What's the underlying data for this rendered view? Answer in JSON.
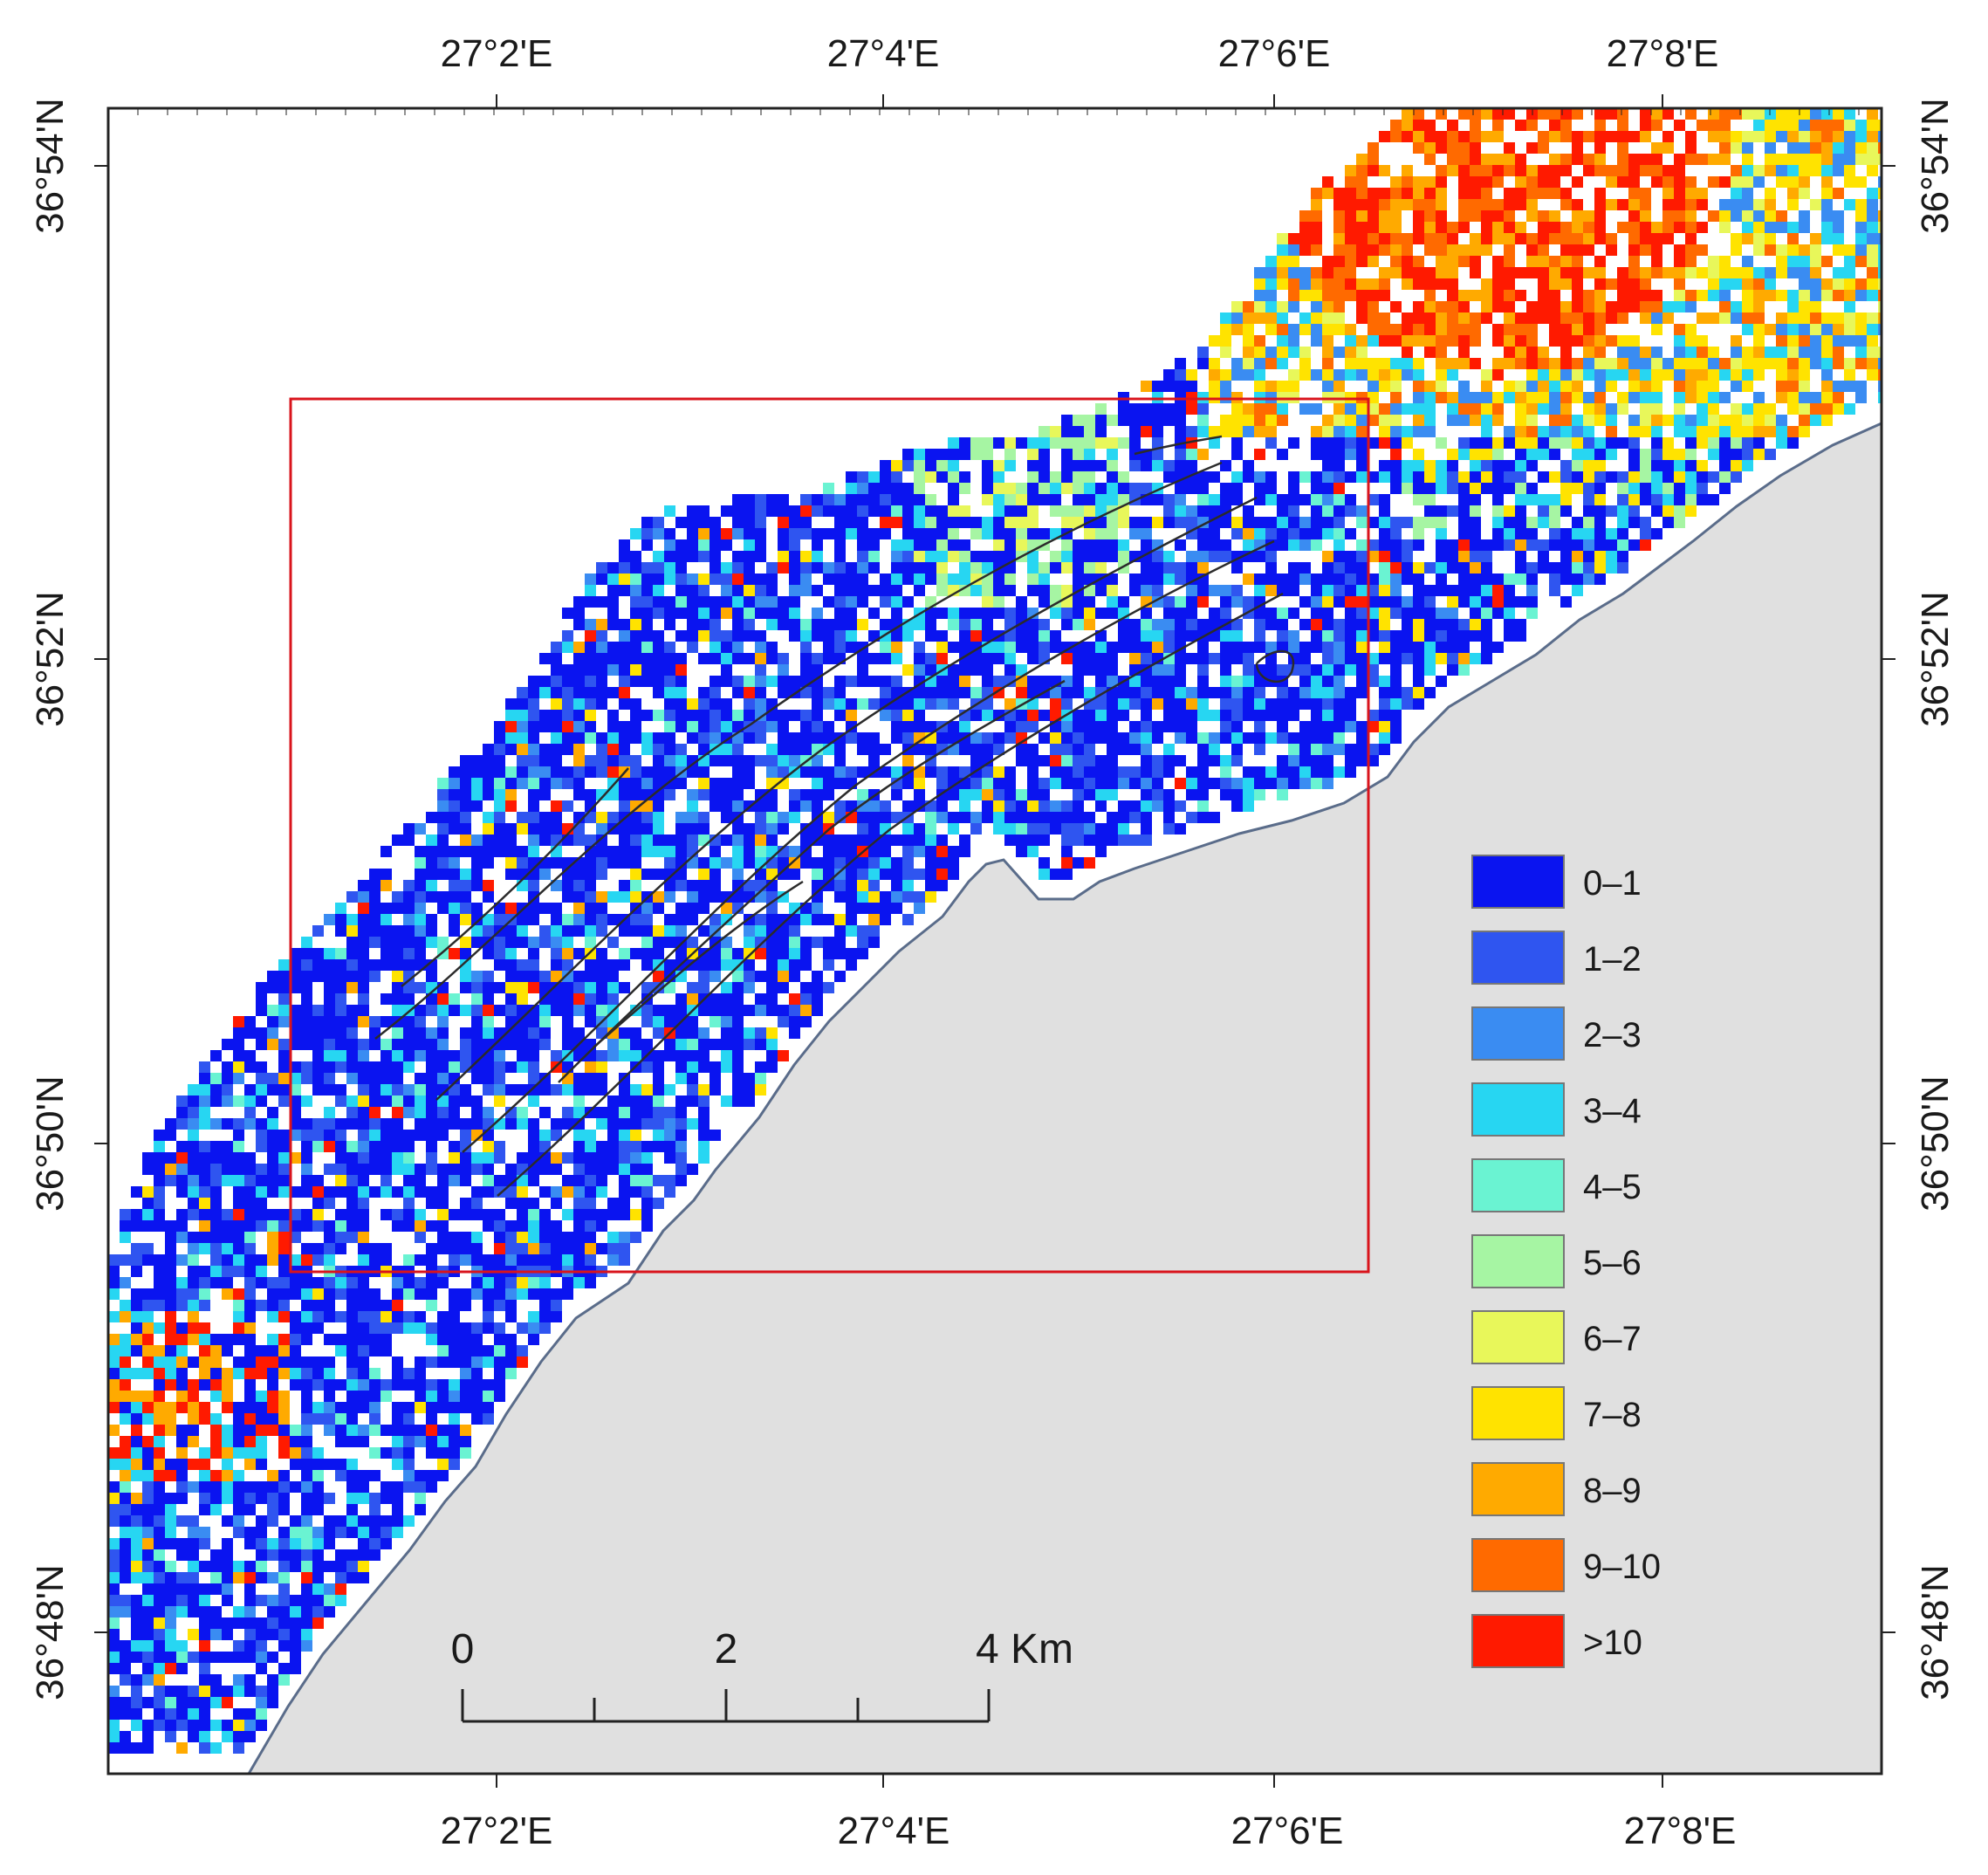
{
  "axes": {
    "top_ticks": [
      "27°2'E",
      "27°4'E",
      "27°6'E",
      "27°8'E"
    ],
    "bottom_ticks": [
      "27°2'E",
      "27°4'E",
      "27°6'E",
      "27°8'E"
    ],
    "left_ticks": [
      "36°54'N",
      "36°52'N",
      "36°50'N",
      "36°48'N"
    ],
    "right_ticks": [
      "36°54'N",
      "36°52'N",
      "36°50'N",
      "36°48'N"
    ]
  },
  "legend": {
    "items": [
      {
        "label": "0–1",
        "color": "#0a14f0"
      },
      {
        "label": "1–2",
        "color": "#2f55f0"
      },
      {
        "label": "2–3",
        "color": "#3a8cf2"
      },
      {
        "label": "3–4",
        "color": "#27d6f2"
      },
      {
        "label": "4–5",
        "color": "#6af3d2"
      },
      {
        "label": "5–6",
        "color": "#a6f5a3"
      },
      {
        "label": "6–7",
        "color": "#e8f75a"
      },
      {
        "label": "7–8",
        "color": "#ffe300"
      },
      {
        "label": "8–9",
        "color": "#ffaa00"
      },
      {
        "label": "9–10",
        "color": "#ff6a00"
      },
      {
        "label": ">10",
        "color": "#ff1a00"
      }
    ]
  },
  "scale_bar": {
    "labels": [
      "0",
      "2",
      "4 Km"
    ]
  },
  "colors": {
    "land": "#e0e0e0",
    "coastline": "#5a6c8a",
    "study_area_box": "#d9141c",
    "fault_lines": "#2b2b2b"
  }
}
